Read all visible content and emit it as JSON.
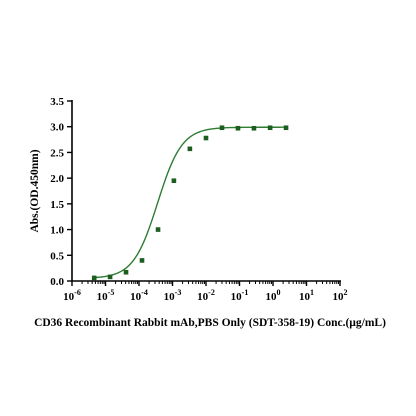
{
  "chart_data": {
    "type": "scatter",
    "title": "",
    "xlabel": "CD36 Recombinant Rabbit mAb,PBS Only (SDT-358-19) Conc.(µg/mL)",
    "ylabel": "Abs.(OD.450nm)",
    "x_scale": "log",
    "x_tick_exponents": [
      -6,
      -5,
      -4,
      -3,
      -2,
      -1,
      0,
      1,
      2
    ],
    "xlim": [
      1e-06,
      100
    ],
    "ylim": [
      0.0,
      3.5
    ],
    "y_ticks": [
      "0.0",
      "0.5",
      "1.0",
      "1.5",
      "2.0",
      "2.5",
      "3.0",
      "3.5"
    ],
    "grid": false,
    "legend": "none",
    "color": "#2e7d32",
    "marker_color": "#1b5e20",
    "series": [
      {
        "x": [
          4.6e-06,
          1.37e-05,
          4.1e-05,
          0.000123,
          0.00037,
          0.0011,
          0.0033,
          0.01,
          0.03,
          0.09,
          0.27,
          0.82,
          2.45
        ],
        "y": [
          0.06,
          0.08,
          0.17,
          0.4,
          1.0,
          1.95,
          2.57,
          2.78,
          2.98,
          2.97,
          2.97,
          2.98,
          2.98
        ]
      }
    ],
    "fit_curve": {
      "model": "4PL",
      "bottom": 0.05,
      "top": 2.99,
      "ec50": 0.00036,
      "hill": 1.2
    }
  }
}
